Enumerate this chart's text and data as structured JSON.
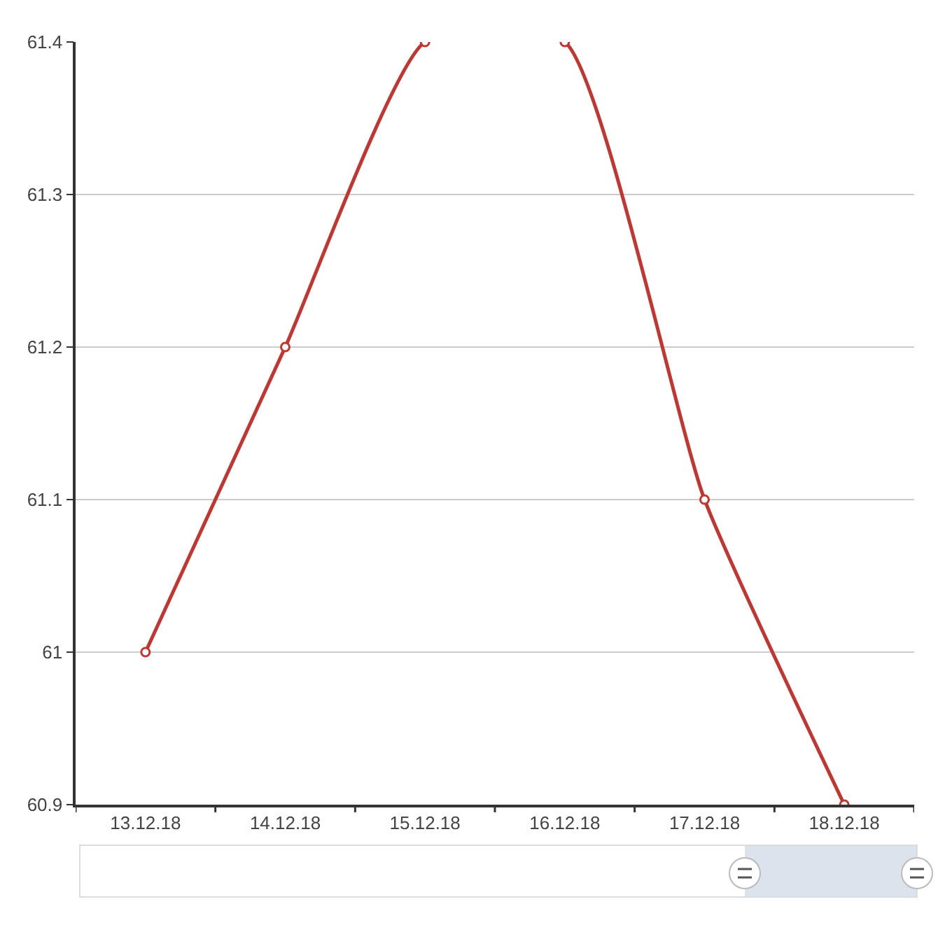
{
  "chart_data": {
    "type": "line",
    "categories": [
      "13.12.18",
      "14.12.18",
      "15.12.18",
      "16.12.18",
      "17.12.18",
      "18.12.18"
    ],
    "series": [
      {
        "color": "#c23531",
        "values": [
          61.0,
          61.2,
          61.4,
          61.4,
          61.1,
          60.9
        ]
      }
    ],
    "ylim": [
      60.9,
      61.4
    ],
    "yticks": [
      60.9,
      61,
      61.1,
      61.2,
      61.3,
      61.4
    ],
    "grid": "y",
    "marker": "circle",
    "line_style": "solid"
  }
}
